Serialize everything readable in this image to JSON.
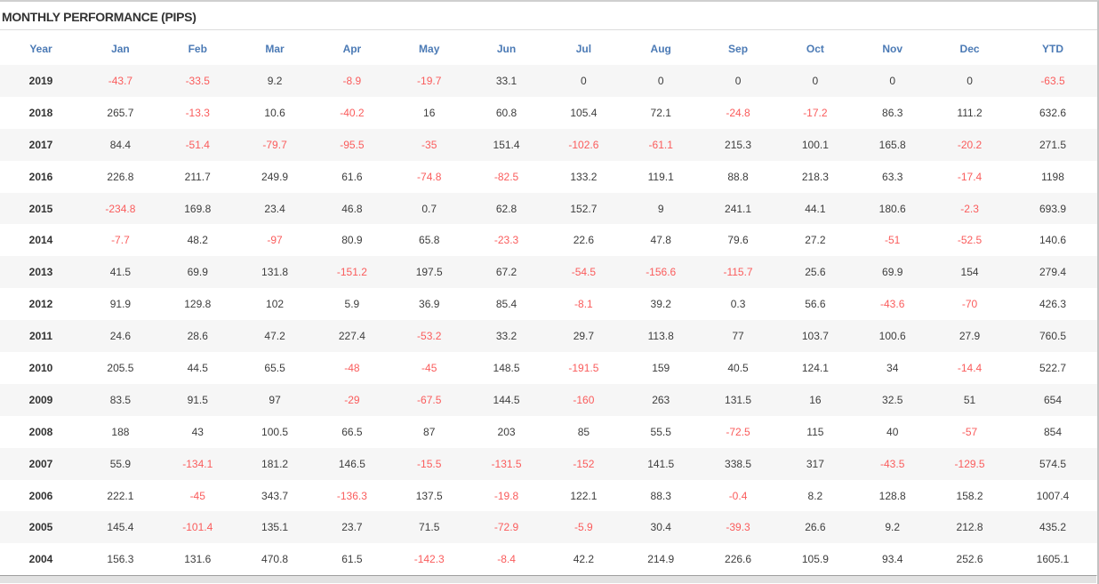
{
  "title": "MONTHLY PERFORMANCE (PIPS)",
  "colors": {
    "header_blue": "#4b7ab5",
    "negative_red": "#fa5c5c",
    "text_dark": "#333333",
    "row_stripe": "#f6f6f6"
  },
  "table": {
    "columns": [
      "Year",
      "Jan",
      "Feb",
      "Mar",
      "Apr",
      "May",
      "Jun",
      "Jul",
      "Aug",
      "Sep",
      "Oct",
      "Nov",
      "Dec",
      "YTD"
    ],
    "rows": [
      {
        "year": "2019",
        "values": [
          "-43.7",
          "-33.5",
          "9.2",
          "-8.9",
          "-19.7",
          "33.1",
          "0",
          "0",
          "0",
          "0",
          "0",
          "0",
          "-63.5"
        ]
      },
      {
        "year": "2018",
        "values": [
          "265.7",
          "-13.3",
          "10.6",
          "-40.2",
          "16",
          "60.8",
          "105.4",
          "72.1",
          "-24.8",
          "-17.2",
          "86.3",
          "111.2",
          "632.6"
        ]
      },
      {
        "year": "2017",
        "values": [
          "84.4",
          "-51.4",
          "-79.7",
          "-95.5",
          "-35",
          "151.4",
          "-102.6",
          "-61.1",
          "215.3",
          "100.1",
          "165.8",
          "-20.2",
          "271.5"
        ]
      },
      {
        "year": "2016",
        "values": [
          "226.8",
          "211.7",
          "249.9",
          "61.6",
          "-74.8",
          "-82.5",
          "133.2",
          "119.1",
          "88.8",
          "218.3",
          "63.3",
          "-17.4",
          "1198"
        ]
      },
      {
        "year": "2015",
        "values": [
          "-234.8",
          "169.8",
          "23.4",
          "46.8",
          "0.7",
          "62.8",
          "152.7",
          "9",
          "241.1",
          "44.1",
          "180.6",
          "-2.3",
          "693.9"
        ]
      },
      {
        "year": "2014",
        "values": [
          "-7.7",
          "48.2",
          "-97",
          "80.9",
          "65.8",
          "-23.3",
          "22.6",
          "47.8",
          "79.6",
          "27.2",
          "-51",
          "-52.5",
          "140.6"
        ]
      },
      {
        "year": "2013",
        "values": [
          "41.5",
          "69.9",
          "131.8",
          "-151.2",
          "197.5",
          "67.2",
          "-54.5",
          "-156.6",
          "-115.7",
          "25.6",
          "69.9",
          "154",
          "279.4"
        ]
      },
      {
        "year": "2012",
        "values": [
          "91.9",
          "129.8",
          "102",
          "5.9",
          "36.9",
          "85.4",
          "-8.1",
          "39.2",
          "0.3",
          "56.6",
          "-43.6",
          "-70",
          "426.3"
        ]
      },
      {
        "year": "2011",
        "values": [
          "24.6",
          "28.6",
          "47.2",
          "227.4",
          "-53.2",
          "33.2",
          "29.7",
          "113.8",
          "77",
          "103.7",
          "100.6",
          "27.9",
          "760.5"
        ]
      },
      {
        "year": "2010",
        "values": [
          "205.5",
          "44.5",
          "65.5",
          "-48",
          "-45",
          "148.5",
          "-191.5",
          "159",
          "40.5",
          "124.1",
          "34",
          "-14.4",
          "522.7"
        ]
      },
      {
        "year": "2009",
        "values": [
          "83.5",
          "91.5",
          "97",
          "-29",
          "-67.5",
          "144.5",
          "-160",
          "263",
          "131.5",
          "16",
          "32.5",
          "51",
          "654"
        ]
      },
      {
        "year": "2008",
        "values": [
          "188",
          "43",
          "100.5",
          "66.5",
          "87",
          "203",
          "85",
          "55.5",
          "-72.5",
          "115",
          "40",
          "-57",
          "854"
        ]
      },
      {
        "year": "2007",
        "values": [
          "55.9",
          "-134.1",
          "181.2",
          "146.5",
          "-15.5",
          "-131.5",
          "-152",
          "141.5",
          "338.5",
          "317",
          "-43.5",
          "-129.5",
          "574.5"
        ]
      },
      {
        "year": "2006",
        "values": [
          "222.1",
          "-45",
          "343.7",
          "-136.3",
          "137.5",
          "-19.8",
          "122.1",
          "88.3",
          "-0.4",
          "8.2",
          "128.8",
          "158.2",
          "1007.4"
        ]
      },
      {
        "year": "2005",
        "values": [
          "145.4",
          "-101.4",
          "135.1",
          "23.7",
          "71.5",
          "-72.9",
          "-5.9",
          "30.4",
          "-39.3",
          "26.6",
          "9.2",
          "212.8",
          "435.2"
        ]
      },
      {
        "year": "2004",
        "values": [
          "156.3",
          "131.6",
          "470.8",
          "61.5",
          "-142.3",
          "-8.4",
          "42.2",
          "214.9",
          "226.6",
          "105.9",
          "93.4",
          "252.6",
          "1605.1"
        ]
      }
    ]
  }
}
